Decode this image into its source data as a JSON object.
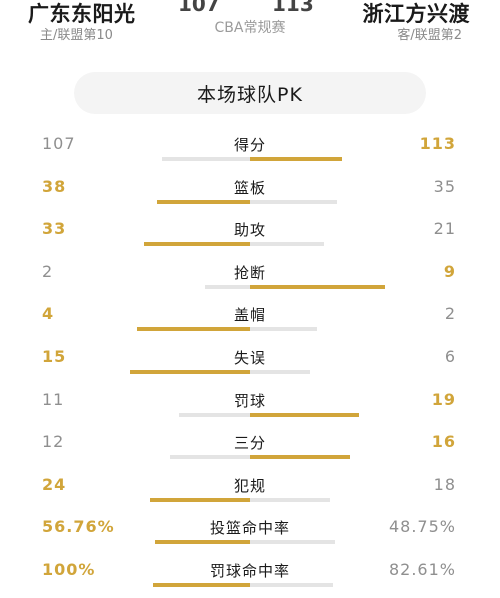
{
  "header": {
    "home_team": "广东东阳光",
    "home_sub": "主/联盟第10",
    "away_team": "浙江方兴渡",
    "away_sub": "客/联盟第2",
    "league": "CBA常规赛",
    "home_score_peek": "107",
    "away_score_peek": "113"
  },
  "pk_title": "本场球队PK",
  "colors": {
    "win": "#d1a53a",
    "neutral": "#e4e4e4"
  },
  "stats": [
    {
      "label": "得分",
      "home": "107",
      "away": "113",
      "home_share": 0.486,
      "away_share": 0.514,
      "winner": "away"
    },
    {
      "label": "篮板",
      "home": "38",
      "away": "35",
      "home_share": 0.521,
      "away_share": 0.479,
      "winner": "home"
    },
    {
      "label": "助攻",
      "home": "33",
      "away": "21",
      "home_share": 0.611,
      "away_share": 0.389,
      "winner": "home"
    },
    {
      "label": "抢断",
      "home": "2",
      "away": "9",
      "home_share": 0.182,
      "away_share": 0.818,
      "winner": "away"
    },
    {
      "label": "盖帽",
      "home": "4",
      "away": "2",
      "home_share": 0.667,
      "away_share": 0.333,
      "winner": "home"
    },
    {
      "label": "失误",
      "home": "15",
      "away": "6",
      "home_share": 0.714,
      "away_share": 0.286,
      "winner": "home"
    },
    {
      "label": "罚球",
      "home": "11",
      "away": "19",
      "home_share": 0.367,
      "away_share": 0.633,
      "winner": "away"
    },
    {
      "label": "三分",
      "home": "12",
      "away": "16",
      "home_share": 0.429,
      "away_share": 0.571,
      "winner": "away"
    },
    {
      "label": "犯规",
      "home": "24",
      "away": "18",
      "home_share": 0.571,
      "away_share": 0.429,
      "winner": "home"
    },
    {
      "label": "投篮命中率",
      "home": "56.76%",
      "away": "48.75%",
      "home_share": 0.538,
      "away_share": 0.462,
      "winner": "home"
    },
    {
      "label": "罚球命中率",
      "home": "100%",
      "away": "82.61%",
      "home_share": 0.548,
      "away_share": 0.452,
      "winner": "home"
    }
  ]
}
